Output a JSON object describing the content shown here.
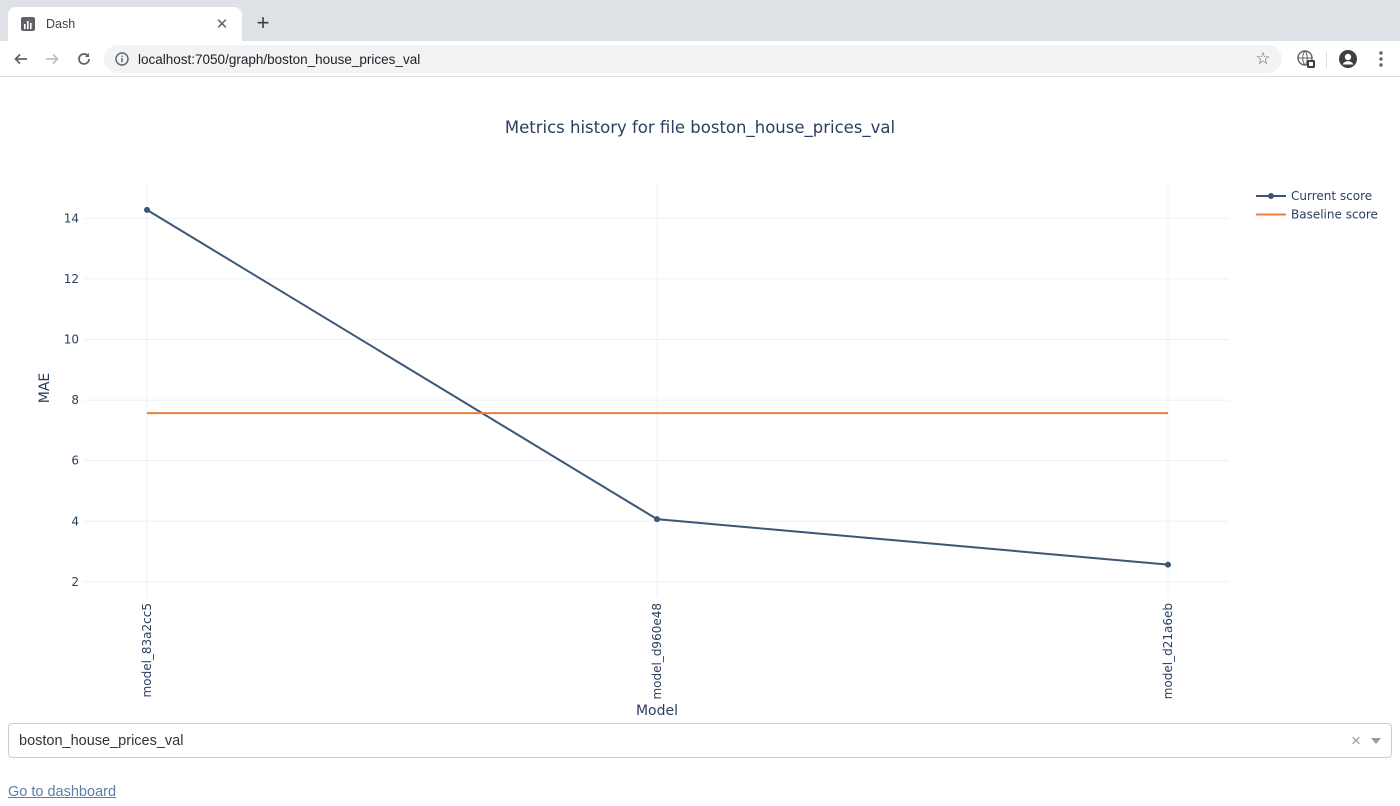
{
  "browser": {
    "tab_title": "Dash",
    "url": "localhost:7050/graph/boston_house_prices_val",
    "icons": {
      "favicon": "bar-chart-icon",
      "back": "arrow-left-icon",
      "forward": "arrow-right-icon",
      "reload": "reload-icon",
      "info": "info-icon",
      "star": "star-icon",
      "extension": "translate-extension-icon",
      "profile": "account-circle-icon",
      "menu": "kebab-menu-icon"
    }
  },
  "chart_data": {
    "type": "line",
    "title": "Metrics history for file boston_house_prices_val",
    "xlabel": "Model",
    "ylabel": "MAE",
    "categories": [
      "model_83a2cc5",
      "model_d960e48",
      "model_d21a6eb"
    ],
    "y_ticks": [
      2,
      4,
      6,
      8,
      10,
      12,
      14
    ],
    "ylim": [
      1.5,
      15.2
    ],
    "grid": true,
    "legend_position": "top-right",
    "series": [
      {
        "name": "Current score",
        "values": [
          14.28,
          4.07,
          2.57
        ],
        "color": "#3d5675",
        "markers": true
      },
      {
        "name": "Baseline score",
        "values": [
          7.57,
          7.57,
          7.57
        ],
        "color": "#f07b3f",
        "markers": false
      }
    ]
  },
  "dropdown": {
    "value": "boston_house_prices_val",
    "clear_symbol": "×"
  },
  "link": {
    "label": "Go to dashboard"
  },
  "colors": {
    "grid": "#ebf0f8",
    "text": "#2a3f5f",
    "link": "#5b7fa8"
  }
}
